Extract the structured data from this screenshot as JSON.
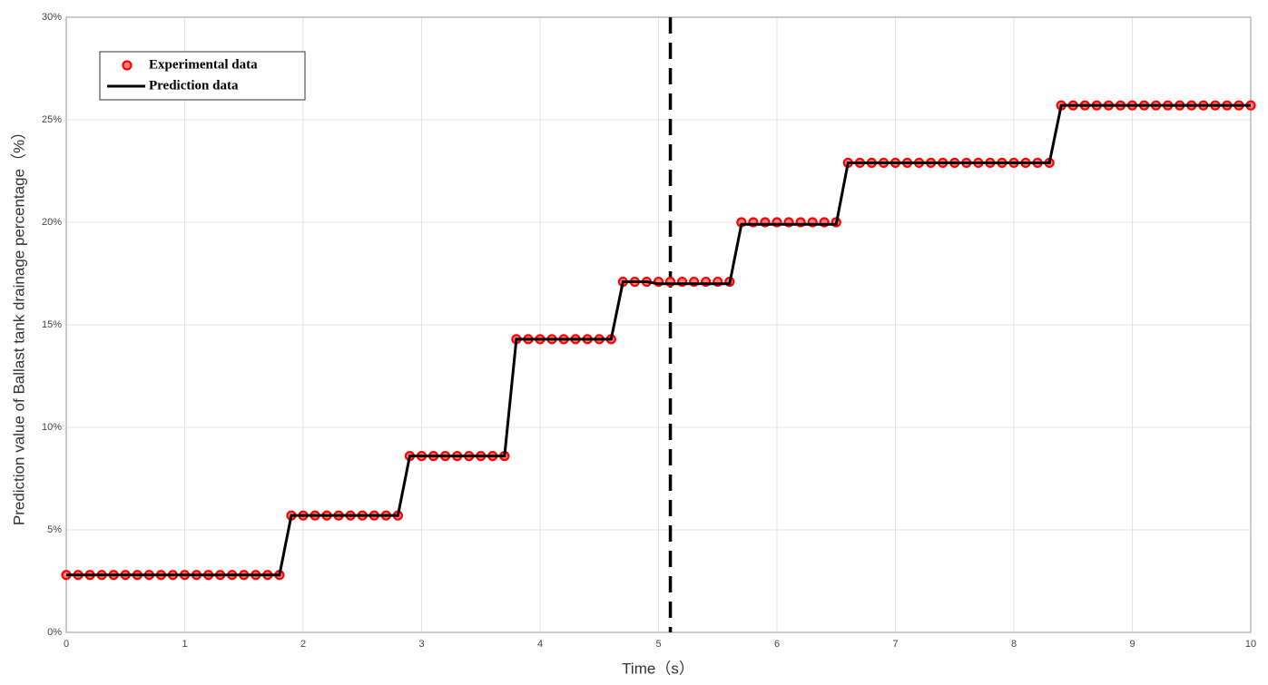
{
  "chart_data": {
    "type": "line",
    "xlabel": "Time（s）",
    "ylabel": "Prediction value of Ballast tank drainage percentage（%）",
    "x": [
      0,
      0.1,
      0.2,
      0.3,
      0.4,
      0.5,
      0.6,
      0.7,
      0.8,
      0.9,
      1,
      1.1,
      1.2,
      1.3,
      1.4,
      1.5,
      1.6,
      1.7,
      1.8,
      1.9,
      2,
      2.1,
      2.2,
      2.3,
      2.4,
      2.5,
      2.6,
      2.7,
      2.8,
      2.9,
      3,
      3.1,
      3.2,
      3.3,
      3.4,
      3.5,
      3.6,
      3.7,
      3.8,
      3.9,
      4,
      4.1,
      4.2,
      4.3,
      4.4,
      4.5,
      4.6,
      4.7,
      4.8,
      4.9,
      5,
      5.1,
      5.2,
      5.3,
      5.4,
      5.5,
      5.6,
      5.7,
      5.8,
      5.9,
      6,
      6.1,
      6.2,
      6.3,
      6.4,
      6.5,
      6.6,
      6.7,
      6.8,
      6.9,
      7,
      7.1,
      7.2,
      7.3,
      7.4,
      7.5,
      7.6,
      7.7,
      7.8,
      7.9,
      8,
      8.1,
      8.2,
      8.3,
      8.4,
      8.5,
      8.6,
      8.7,
      8.8,
      8.9,
      9,
      9.1,
      9.2,
      9.3,
      9.4,
      9.5,
      9.6,
      9.7,
      9.8,
      9.9,
      10
    ],
    "series": [
      {
        "name": "Experimental data",
        "color": "#ff0000",
        "style": "markers",
        "values": [
          2.8,
          2.8,
          2.8,
          2.8,
          2.8,
          2.8,
          2.8,
          2.8,
          2.8,
          2.8,
          2.8,
          2.8,
          2.8,
          2.8,
          2.8,
          2.8,
          2.8,
          2.8,
          2.8,
          5.7,
          5.7,
          5.7,
          5.7,
          5.7,
          5.7,
          5.7,
          5.7,
          5.7,
          5.7,
          8.6,
          8.6,
          8.6,
          8.6,
          8.6,
          8.6,
          8.6,
          8.6,
          8.6,
          14.3,
          14.3,
          14.3,
          14.3,
          14.3,
          14.3,
          14.3,
          14.3,
          14.3,
          17.1,
          17.1,
          17.1,
          17.1,
          17.1,
          17.1,
          17.1,
          17.1,
          17.1,
          17.1,
          20,
          20,
          20,
          20,
          20,
          20,
          20,
          20,
          20,
          22.9,
          22.9,
          22.9,
          22.9,
          22.9,
          22.9,
          22.9,
          22.9,
          22.9,
          22.9,
          22.9,
          22.9,
          22.9,
          22.9,
          22.9,
          22.9,
          22.9,
          22.9,
          25.7,
          25.7,
          25.7,
          25.7,
          25.7,
          25.7,
          25.7,
          25.7,
          25.7,
          25.7,
          25.7,
          25.7,
          25.7,
          25.7,
          25.7,
          25.7,
          25.7
        ]
      },
      {
        "name": "Prediction data",
        "color": "#000000",
        "style": "line",
        "values": [
          2.8,
          2.8,
          2.8,
          2.8,
          2.8,
          2.8,
          2.8,
          2.8,
          2.8,
          2.8,
          2.8,
          2.8,
          2.8,
          2.8,
          2.8,
          2.8,
          2.8,
          2.8,
          2.8,
          5.7,
          5.7,
          5.7,
          5.7,
          5.7,
          5.7,
          5.7,
          5.7,
          5.7,
          5.7,
          8.6,
          8.6,
          8.6,
          8.6,
          8.6,
          8.6,
          8.6,
          8.6,
          8.6,
          14.3,
          14.3,
          14.3,
          14.3,
          14.3,
          14.3,
          14.3,
          14.3,
          14.3,
          17.1,
          17.1,
          17.1,
          17,
          17,
          17,
          17,
          17,
          17,
          17,
          19.9,
          19.9,
          19.9,
          19.9,
          19.9,
          19.9,
          19.9,
          19.9,
          19.9,
          22.9,
          22.9,
          22.9,
          22.9,
          22.9,
          22.9,
          22.9,
          22.9,
          22.9,
          22.9,
          22.9,
          22.9,
          22.9,
          22.9,
          22.9,
          22.9,
          22.9,
          22.9,
          25.7,
          25.7,
          25.7,
          25.7,
          25.7,
          25.7,
          25.7,
          25.7,
          25.7,
          25.7,
          25.7,
          25.7,
          25.7,
          25.7,
          25.7,
          25.7,
          25.7
        ]
      }
    ],
    "vline": 5.1,
    "xlim": [
      0,
      10
    ],
    "xticks": [
      0,
      1,
      2,
      3,
      4,
      5,
      6,
      7,
      8,
      9,
      10
    ],
    "ylim": [
      0,
      30
    ],
    "yticks": [
      {
        "value": 0,
        "label": "0%"
      },
      {
        "value": 5,
        "label": "5%"
      },
      {
        "value": 10,
        "label": "10%"
      },
      {
        "value": 15,
        "label": "15%"
      },
      {
        "value": 20,
        "label": "20%"
      },
      {
        "value": 25,
        "label": "25%"
      },
      {
        "value": 30,
        "label": "30%"
      }
    ],
    "grid": true,
    "legend": "upper-left"
  }
}
